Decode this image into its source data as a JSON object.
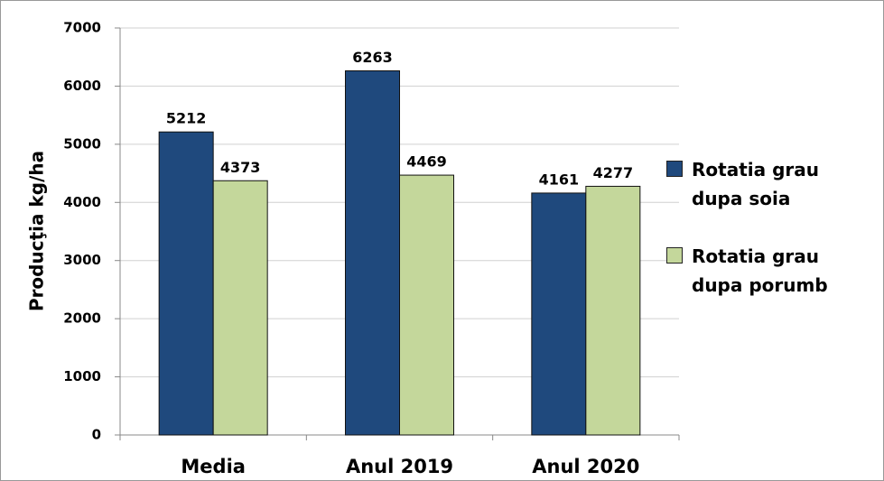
{
  "chart_data": {
    "type": "bar",
    "y_label": "Producţia kg/ha",
    "categories": [
      "Media",
      "Anul 2019",
      "Anul 2020"
    ],
    "series": [
      {
        "name": "Rotatia grau dupa soia",
        "color": "#1f497d",
        "values": [
          5212,
          6263,
          4161
        ]
      },
      {
        "name": "Rotatia grau dupa porumb",
        "color": "#c4d79b",
        "values": [
          4373,
          4469,
          4277
        ]
      }
    ],
    "ylim": [
      0,
      7000
    ],
    "yticks": [
      0,
      1000,
      2000,
      3000,
      4000,
      5000,
      6000,
      7000
    ],
    "grid": true,
    "legend": "right"
  }
}
